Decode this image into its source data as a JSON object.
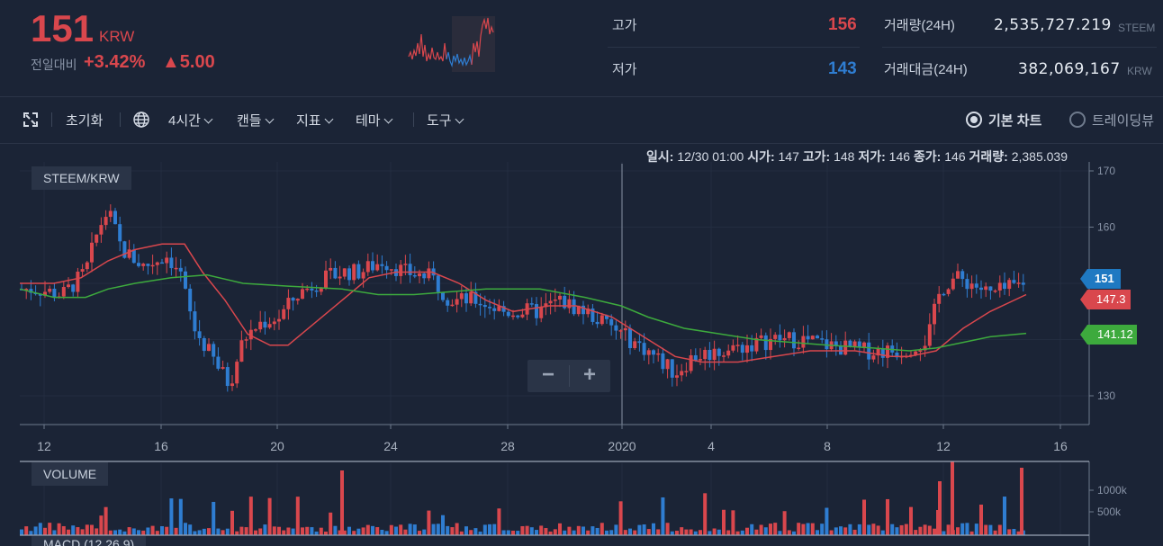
{
  "header": {
    "price": "151",
    "price_unit": "KRW",
    "change_label": "전일대비",
    "change_percent": "+3.42%",
    "change_amount": "▲5.00",
    "high_label": "고가",
    "high_value": "156",
    "low_label": "저가",
    "low_value": "143",
    "volume_label": "거래량(24H)",
    "volume_value": "2,535,727.219",
    "volume_unit": "STEEM",
    "amount_label": "거래대금(24H)",
    "amount_value": "382,069,167",
    "amount_unit": "KRW",
    "colors": {
      "up": "#d9474d",
      "down": "#2f7dd1"
    }
  },
  "toolbar": {
    "fullscreen_icon": "expand-icon",
    "reset_label": "초기화",
    "globe_icon": "globe-icon",
    "interval_label": "4시간",
    "candle_label": "캔들",
    "indicator_label": "지표",
    "theme_label": "테마",
    "tools_label": "도구",
    "view_basic_label": "기본 차트",
    "view_tradingview_label": "트레이딩뷰"
  },
  "chart": {
    "pair_label": "STEEM/KRW",
    "volume_label": "VOLUME",
    "macd_label": "MACD (12,26,9)",
    "ohlc": {
      "date_label": "일시:",
      "date_value": "12/30 01:00",
      "open_label": "시가:",
      "open_value": "147",
      "high_label": "고가:",
      "high_value": "148",
      "low_label": "저가:",
      "low_value": "146",
      "close_label": "종가:",
      "close_value": "146",
      "vol_label": "거래량:",
      "vol_value": "2,385.039"
    },
    "price_axis_ticks": [
      "170",
      "160",
      "130"
    ],
    "volume_axis_ticks": [
      "1000k",
      "500k"
    ],
    "x_axis_ticks": [
      "12",
      "16",
      "20",
      "24",
      "28",
      "2020",
      "4",
      "8",
      "12",
      "16"
    ],
    "markers": {
      "last": "151",
      "ma_short": "147.3",
      "ma_long": "141.12",
      "colors": {
        "last": "#1f79c2",
        "ma_short": "#d9474d",
        "ma_long": "#3daa3d"
      }
    },
    "zoom_out_label": "−",
    "zoom_in_label": "+"
  }
}
